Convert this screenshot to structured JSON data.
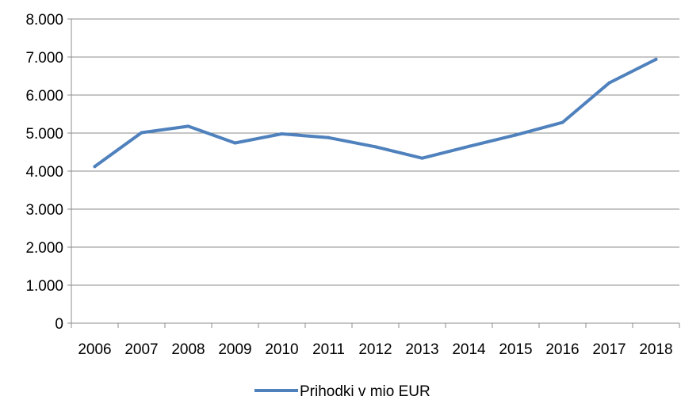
{
  "chart_data": {
    "type": "line",
    "title": "",
    "xlabel": "",
    "ylabel": "",
    "x": [
      "2006",
      "2007",
      "2008",
      "2009",
      "2010",
      "2011",
      "2012",
      "2013",
      "2014",
      "2015",
      "2016",
      "2017",
      "2018"
    ],
    "y_tick_labels": [
      "0",
      "1.000",
      "2.000",
      "3.000",
      "4.000",
      "5.000",
      "6.000",
      "7.000",
      "8.000"
    ],
    "y_ticks": [
      0,
      1000,
      2000,
      3000,
      4000,
      5000,
      6000,
      7000,
      8000
    ],
    "ylim": [
      0,
      8000
    ],
    "grid": true,
    "legend_position": "bottom",
    "series": [
      {
        "name": "Prihodki v mio EUR",
        "color": "#4f81bd",
        "values": [
          4120,
          5010,
          5180,
          4740,
          4980,
          4880,
          4640,
          4340,
          4650,
          4950,
          5280,
          6320,
          6940
        ]
      }
    ]
  }
}
